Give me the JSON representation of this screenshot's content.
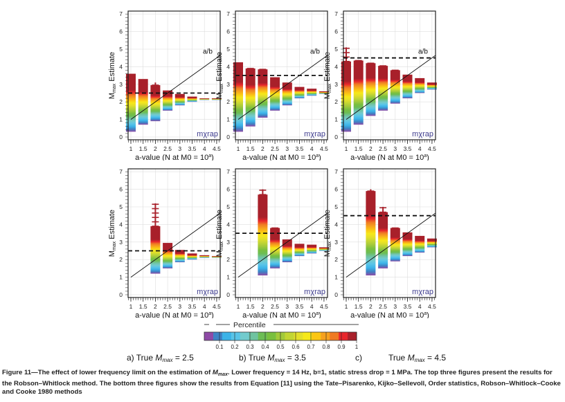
{
  "figure": {
    "y_label": "Estimate",
    "y_label_main": "M",
    "y_label_sub": "max",
    "x_label": "a-value (N at M0 = 10",
    "x_label_sup": "a",
    "x_label_end": ")",
    "watermark": "mχrap",
    "line_label": "a/b",
    "x_ticks": [
      "1",
      "1.5",
      "2",
      "2.5",
      "3",
      "3.5",
      "4",
      "4.5"
    ],
    "y_ticks": [
      "0",
      "1",
      "2",
      "3",
      "4",
      "5",
      "6",
      "7"
    ]
  },
  "colorbar": {
    "title": "Percentile",
    "ticks": [
      "0.1",
      "0.2",
      "0.3",
      "0.4",
      "0.5",
      "0.6",
      "0.7",
      "0.8",
      "0.9",
      "1"
    ],
    "colors": [
      "#8e4aa6",
      "#3f82c4",
      "#3bb3e8",
      "#59c4e8",
      "#72cbcd",
      "#6fc3a0",
      "#6cbd55",
      "#79bf3f",
      "#a2c93b",
      "#c2d534",
      "#e3df2a",
      "#f6e81a",
      "#fbc613",
      "#f6a11e",
      "#ef7a23",
      "#e8262b",
      "#a8202a"
    ]
  },
  "column_labels": [
    {
      "prefix": "a) True ",
      "m": "M",
      "sub": "max",
      "suffix": " = 2.5"
    },
    {
      "prefix": "b) True ",
      "m": "M",
      "sub": "max",
      "suffix": " = 3.5"
    },
    {
      "prefix": "c)",
      "m": "",
      "sub": "",
      "suffix": ""
    },
    {
      "prefix": "True ",
      "m": "M",
      "sub": "max",
      "suffix": " = 4.5"
    }
  ],
  "caption": {
    "p1": "Figure 11—The effect of lower frequency limit on the estimation of ",
    "m": "M",
    "sub": "max",
    "p2": ". Lower frequency = 14 Hz, b=1, static stress drop = 1 MPa. The top three figures present the results for the Robson–Whitlock method. The bottom three figures show the results from Equation [11] using the Tate–Pisarenko, Kijko–Sellevoll, Order statistics, Robson–Whitlock–Cooke and Cooke 1980 methods"
  },
  "chart_data": [
    {
      "type": "bar",
      "panel": "top-a",
      "true_mmax": 2.5,
      "xlim": [
        0.85,
        4.6
      ],
      "ylim": [
        0,
        7
      ],
      "x": [
        1,
        1.5,
        2,
        2.5,
        3,
        3.5,
        4,
        4.5
      ],
      "low": [
        0.3,
        0.7,
        0.9,
        1.5,
        1.8,
        2.0,
        2.1,
        2.1
      ],
      "high": [
        3.6,
        3.3,
        2.95,
        2.65,
        2.45,
        2.3,
        2.2,
        2.2
      ],
      "whisker": [
        null,
        null,
        3.1,
        null,
        null,
        null,
        null,
        null
      ],
      "show_line_label": true
    },
    {
      "type": "bar",
      "panel": "top-b",
      "true_mmax": 3.5,
      "xlim": [
        0.85,
        4.6
      ],
      "ylim": [
        0,
        7
      ],
      "x": [
        1,
        1.5,
        2,
        2.5,
        3,
        3.5,
        4,
        4.5
      ],
      "low": [
        0.3,
        0.6,
        1.1,
        1.5,
        1.8,
        2.2,
        2.35,
        2.45
      ],
      "high": [
        4.25,
        3.9,
        3.85,
        3.4,
        3.1,
        2.85,
        2.75,
        2.6
      ],
      "whisker": [
        null,
        3.9,
        3.85,
        null,
        null,
        null,
        null,
        null
      ],
      "show_line_label": true
    },
    {
      "type": "bar",
      "panel": "top-c",
      "true_mmax": 4.5,
      "xlim": [
        0.85,
        4.6
      ],
      "ylim": [
        0,
        7
      ],
      "x": [
        1,
        1.5,
        2,
        2.5,
        3,
        3.5,
        4,
        4.5
      ],
      "low": [
        0.3,
        0.7,
        1.2,
        1.5,
        1.9,
        2.2,
        2.5,
        2.7
      ],
      "high": [
        4.3,
        4.35,
        4.2,
        4.05,
        3.8,
        3.55,
        3.35,
        3.1
      ],
      "whisker": [
        5.1,
        4.35,
        4.2,
        4.05,
        3.8,
        null,
        null,
        null
      ],
      "show_line_label": true
    },
    {
      "type": "bar",
      "panel": "bottom-a",
      "true_mmax": 2.5,
      "xlim": [
        0.85,
        4.6
      ],
      "ylim": [
        0,
        7
      ],
      "x": [
        2,
        2.5,
        3,
        3.5,
        4,
        4.5
      ],
      "low": [
        1.2,
        1.5,
        1.85,
        2.0,
        2.1,
        2.1
      ],
      "high": [
        3.9,
        2.95,
        2.55,
        2.35,
        2.25,
        2.2
      ],
      "whisker": [
        5.2,
        null,
        null,
        null,
        null,
        null
      ],
      "show_line_label": false
    },
    {
      "type": "bar",
      "panel": "bottom-b",
      "true_mmax": 3.5,
      "xlim": [
        0.85,
        4.6
      ],
      "ylim": [
        0,
        7
      ],
      "x": [
        2,
        2.5,
        3,
        3.5,
        4,
        4.5
      ],
      "low": [
        1.1,
        1.5,
        1.85,
        2.2,
        2.35,
        2.5
      ],
      "high": [
        5.7,
        3.8,
        3.15,
        2.9,
        2.85,
        2.7
      ],
      "whisker": [
        6.0,
        3.8,
        null,
        null,
        null,
        null
      ],
      "show_line_label": false
    },
    {
      "type": "bar",
      "panel": "bottom-c",
      "true_mmax": 4.5,
      "xlim": [
        0.85,
        4.6
      ],
      "ylim": [
        0,
        7
      ],
      "x": [
        2,
        2.5,
        3,
        3.5,
        4,
        4.5
      ],
      "low": [
        1.1,
        1.5,
        1.9,
        2.2,
        2.4,
        2.7
      ],
      "high": [
        5.9,
        4.7,
        3.8,
        3.55,
        3.35,
        3.2
      ],
      "whisker": [
        6.0,
        5.0,
        3.8,
        null,
        null,
        null
      ],
      "show_line_label": false
    }
  ]
}
